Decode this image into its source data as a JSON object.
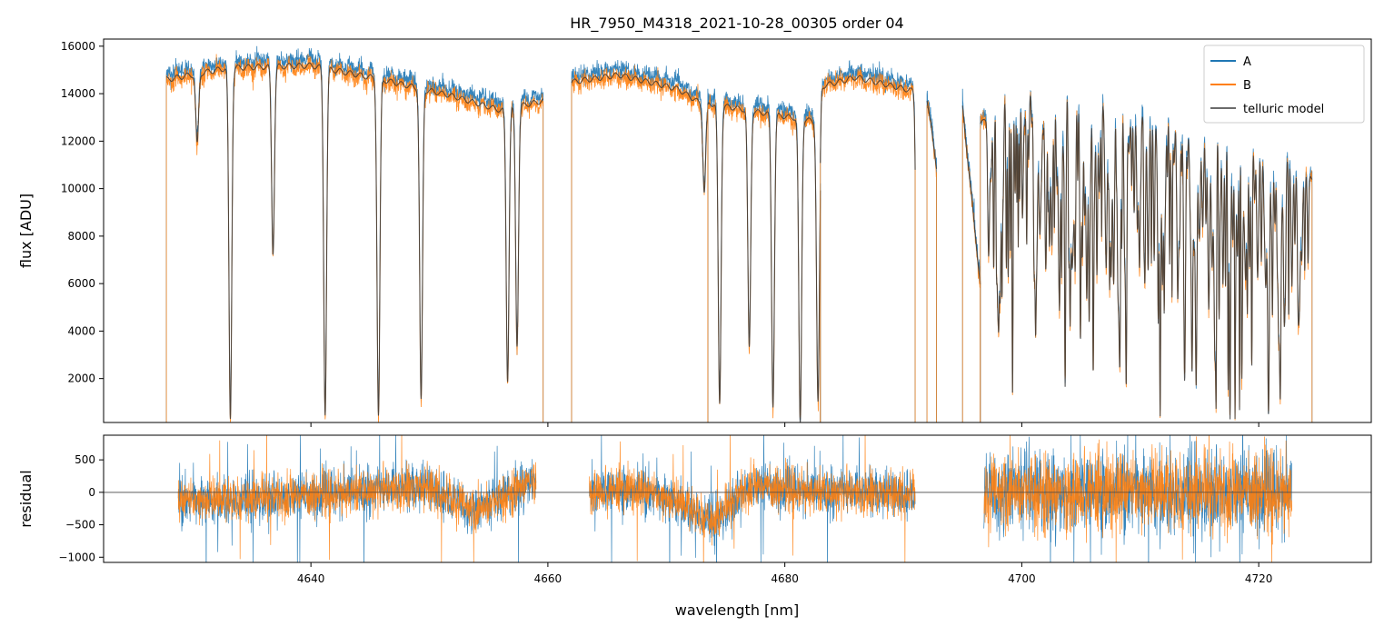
{
  "chart_data": {
    "type": "line",
    "title": "HR_7950_M4318_2021-10-28_00305  order 04",
    "xlabel": "wavelength [nm]",
    "xlim": [
      4622.5,
      4729.5
    ],
    "x_ticks": [
      4640,
      4660,
      4680,
      4700,
      4720
    ],
    "x_tick_labels": [
      "4640",
      "4660",
      "4680",
      "4700",
      "4720"
    ],
    "legend_position": "top-right",
    "colors": {
      "A": "#1f77b4",
      "B": "#ff7f0e",
      "telluric": "#3a3a3a"
    },
    "panels": [
      {
        "id": "flux",
        "ylabel": "flux [ADU]",
        "ylim": [
          150,
          16300
        ],
        "y_ticks": [
          2000,
          4000,
          6000,
          8000,
          10000,
          12000,
          14000,
          16000
        ],
        "y_tick_labels": [
          "2000",
          "4000",
          "6000",
          "8000",
          "10000",
          "12000",
          "14000",
          "16000"
        ],
        "continuum_segments": [
          {
            "x": [
              4627.8,
              4633.0,
              4640.0,
              4646.0,
              4652.0,
              4656.0,
              4659.6
            ],
            "y": [
              14700,
              15200,
              15300,
              14700,
              14000,
              13400,
              13800
            ]
          },
          {
            "x": [
              4662.0,
              4666.0,
              4671.0,
              4673.5
            ],
            "y": [
              14600,
              14900,
              14300,
              13500
            ]
          },
          {
            "x": [
              4673.5,
              4678.0,
              4683.0
            ],
            "y": [
              13700,
              13300,
              12900
            ]
          },
          {
            "x": [
              4683.0,
              4686.0,
              4691.0
            ],
            "y": [
              14400,
              14800,
              14200
            ]
          },
          {
            "x": [
              4692.0,
              4692.8
            ],
            "y": [
              13900,
              11000
            ]
          },
          {
            "x": [
              4695.0,
              4696.5
            ],
            "y": [
              13500,
              6000
            ]
          },
          {
            "x": [
              4696.5,
              4700.0,
              4705.0,
              4710.0,
              4715.0,
              4720.0,
              4724.5
            ],
            "y": [
              12800,
              14500,
              13900,
              13200,
              12500,
              12000,
              10500
            ]
          }
        ],
        "absorption_lines": [
          {
            "x": 4630.4,
            "depth": 0.2
          },
          {
            "x": 4633.2,
            "depth": 0.98
          },
          {
            "x": 4636.8,
            "depth": 0.52
          },
          {
            "x": 4641.2,
            "depth": 0.97
          },
          {
            "x": 4645.7,
            "depth": 0.97
          },
          {
            "x": 4649.3,
            "depth": 0.92
          },
          {
            "x": 4656.6,
            "depth": 0.86
          },
          {
            "x": 4657.4,
            "depth": 0.75
          },
          {
            "x": 4673.2,
            "depth": 0.27
          },
          {
            "x": 4674.5,
            "depth": 0.93
          },
          {
            "x": 4677.0,
            "depth": 0.75
          },
          {
            "x": 4679.0,
            "depth": 0.94
          },
          {
            "x": 4681.3,
            "depth": 0.99
          },
          {
            "x": 4682.8,
            "depth": 0.92
          },
          {
            "x": 4691.2,
            "depth": 0.92
          }
        ],
        "dense_forest_range": [
          4697.0,
          4724.0
        ],
        "series": [
          {
            "name": "A",
            "color": "#1f77b4"
          },
          {
            "name": "B",
            "color": "#ff7f0e"
          },
          {
            "name": "telluric model",
            "color": "#3a3a3a"
          }
        ]
      },
      {
        "id": "residual",
        "ylabel": "residual",
        "ylim": [
          -1080,
          880
        ],
        "y_ticks": [
          -1000,
          -500,
          0,
          500
        ],
        "y_tick_labels": [
          "−1000",
          "−500",
          "0",
          "500"
        ],
        "zero_line": true,
        "segments": [
          {
            "x_range": [
              4628.8,
              4659.0
            ],
            "trend_x": [
              4628.8,
              4640,
              4650,
              4654,
              4657,
              4659
            ],
            "trend_y": [
              -150,
              -50,
              100,
              -300,
              0,
              250
            ],
            "noise": 180
          },
          {
            "x_range": [
              4663.5,
              4691.0
            ],
            "trend_x": [
              4663.5,
              4667,
              4671,
              4674,
              4677,
              4683,
              4691
            ],
            "trend_y": [
              0,
              50,
              -150,
              -450,
              100,
              0,
              0
            ],
            "noise": 180
          },
          {
            "x_range": [
              4696.8,
              4722.8
            ],
            "trend_x": [
              4696.8,
              4710,
              4722.8
            ],
            "trend_y": [
              0,
              0,
              0
            ],
            "noise": 320
          }
        ]
      }
    ]
  }
}
